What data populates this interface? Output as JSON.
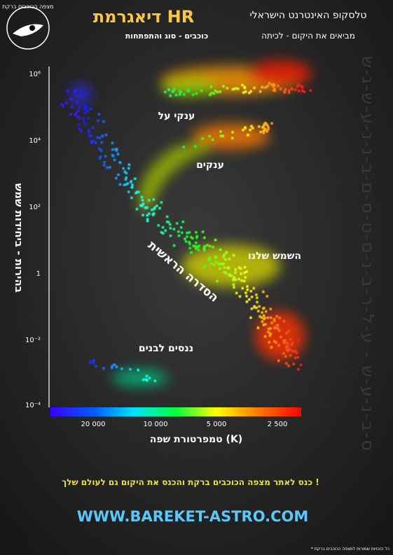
{
  "header": {
    "title": "דיאגרמת HR",
    "subtitle": "כוכבים - סוג והתפתחות",
    "brand": "טלסקופ האינטרנט הישראלי",
    "slogan": "מביאים את היקום - לכיתה",
    "logo": "מצפה הכוכבים ברקת"
  },
  "side_text": "ס-ב-נ-ע-ש - ע-ל-ר-ב-נ-ס-ט-ס-ם-ב-נ-נ-ע-ש-ג-ש",
  "diagram": {
    "y_axis_label": "בהירות - ביחידות שמש",
    "x_axis_label": "טמפרטורת שפה (K)",
    "y_ticks": [
      "10⁶",
      "10⁴",
      "10²",
      "1",
      "10⁻²",
      "10⁻⁴"
    ],
    "x_ticks": [
      "20 000",
      "10 000",
      "5 000",
      "2 500"
    ],
    "regions": {
      "supergiants": "ענקי על",
      "giants": "ענקים",
      "sun": "השמש שלנו",
      "main_sequence": "הסדרה הראשית",
      "white_dwarfs": "ננסים לבנים"
    }
  },
  "footer": {
    "invite": "כנס לאתר מצפה הכוכבים ברקת והכנס את היקום גם לעולם שלך  !",
    "url": "WWW.BAREKET-ASTRO.COM",
    "copyright": "* כל הזכויות שמורות למצפה הכוכבים ברקת"
  }
}
